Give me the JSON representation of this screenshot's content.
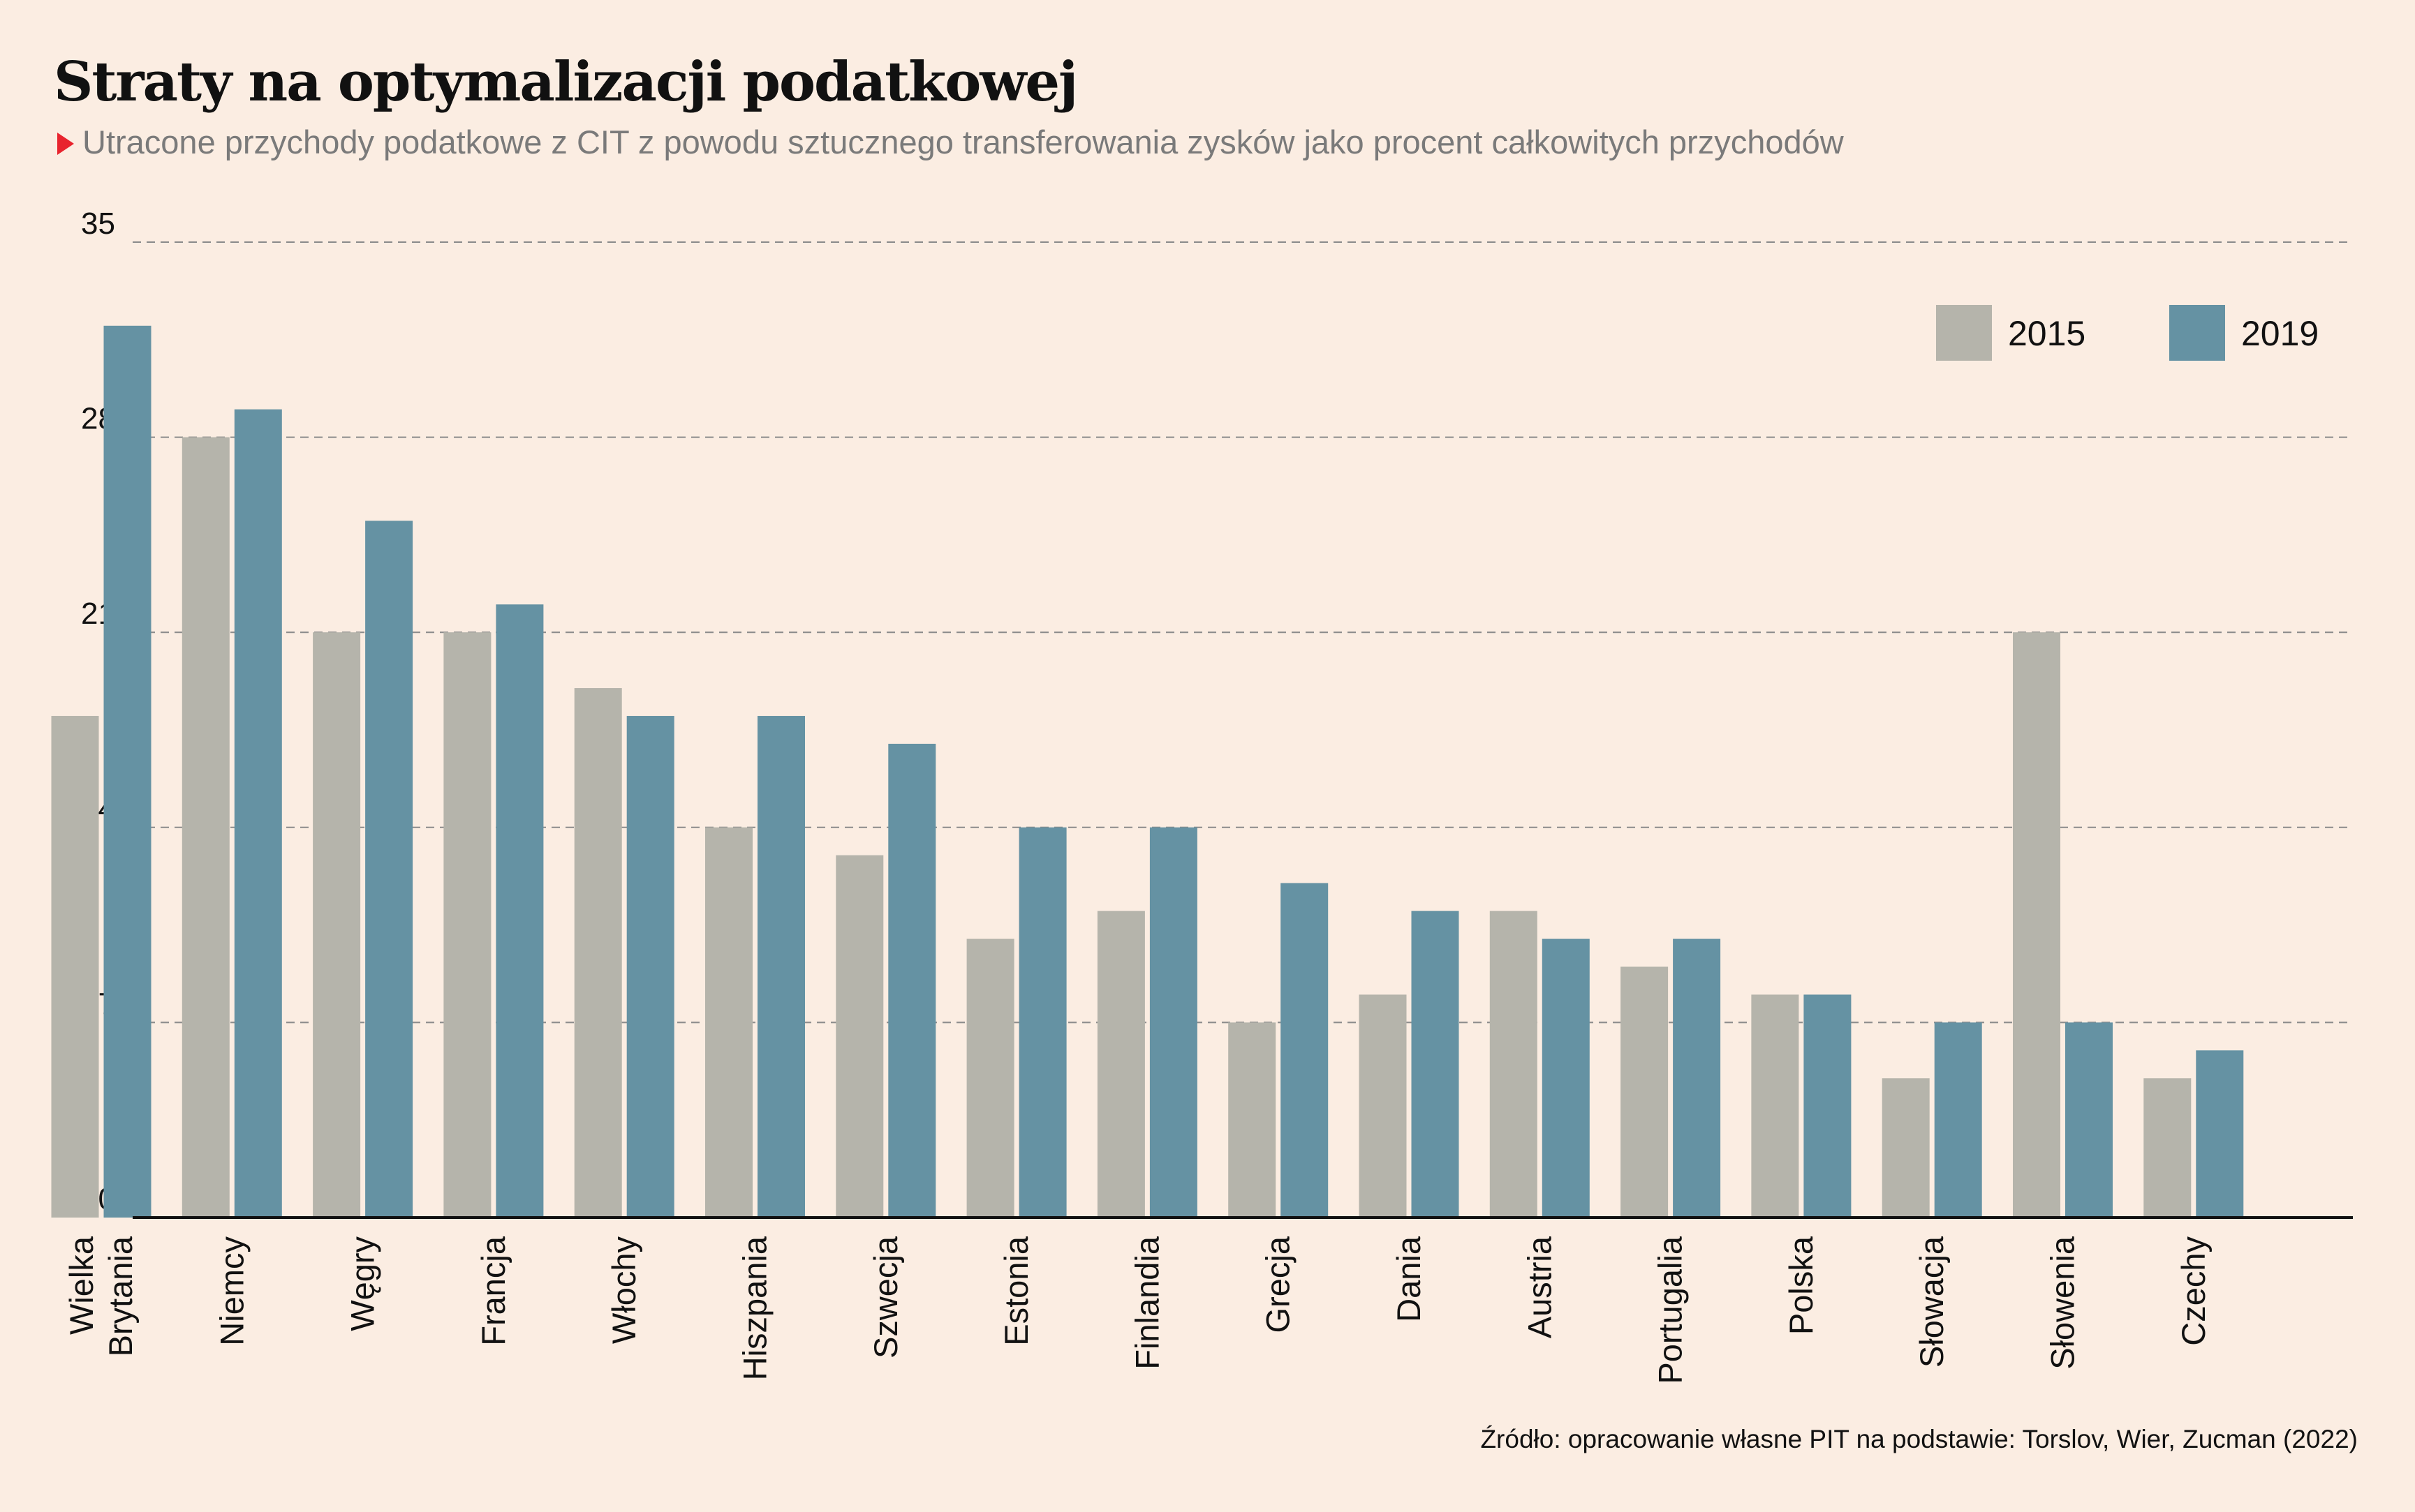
{
  "title": "Straty na optymalizacji podatkowej",
  "subtitle": "Utracone przychody podatkowe z CIT z powodu sztucznego transferowania zysków jako procent całkowitych przychodów",
  "source": "Źródło: opracowanie własne PIT na podstawie: Torslov, Wier, Zucman (2022)",
  "colors": {
    "background": "#fbede2",
    "series_2015": "#b5b4ab",
    "series_2019": "#6592a3",
    "marker": "#e8242e",
    "grid": "#8a8a8a"
  },
  "chart_data": {
    "type": "bar",
    "categories": [
      [
        "Wielka",
        "Brytania"
      ],
      [
        "Niemcy"
      ],
      [
        "Węgry"
      ],
      [
        "Francja"
      ],
      [
        "Włochy"
      ],
      [
        "Hiszpania"
      ],
      [
        "Szwecja"
      ],
      [
        "Estonia"
      ],
      [
        "Finlandia"
      ],
      [
        "Grecja"
      ],
      [
        "Dania"
      ],
      [
        "Austria"
      ],
      [
        "Portugalia"
      ],
      [
        "Polska"
      ],
      [
        "Słowacja"
      ],
      [
        "Słowenia"
      ],
      [
        "Czechy"
      ]
    ],
    "series": [
      {
        "name": "2015",
        "color": "#b5b4ab",
        "values": [
          18,
          28,
          21,
          21,
          19,
          14,
          13,
          10,
          11,
          7,
          8,
          11,
          9,
          8,
          5,
          21,
          5
        ]
      },
      {
        "name": "2019",
        "color": "#6592a3",
        "values": [
          32,
          29,
          25,
          22,
          18,
          18,
          17,
          14,
          14,
          12,
          11,
          10,
          10,
          8,
          7,
          7,
          6
        ]
      }
    ],
    "yticks": [
      0,
      7,
      14,
      21,
      28,
      35
    ],
    "ylim": [
      0,
      35
    ],
    "grid": true,
    "legend_position": "top-right"
  }
}
